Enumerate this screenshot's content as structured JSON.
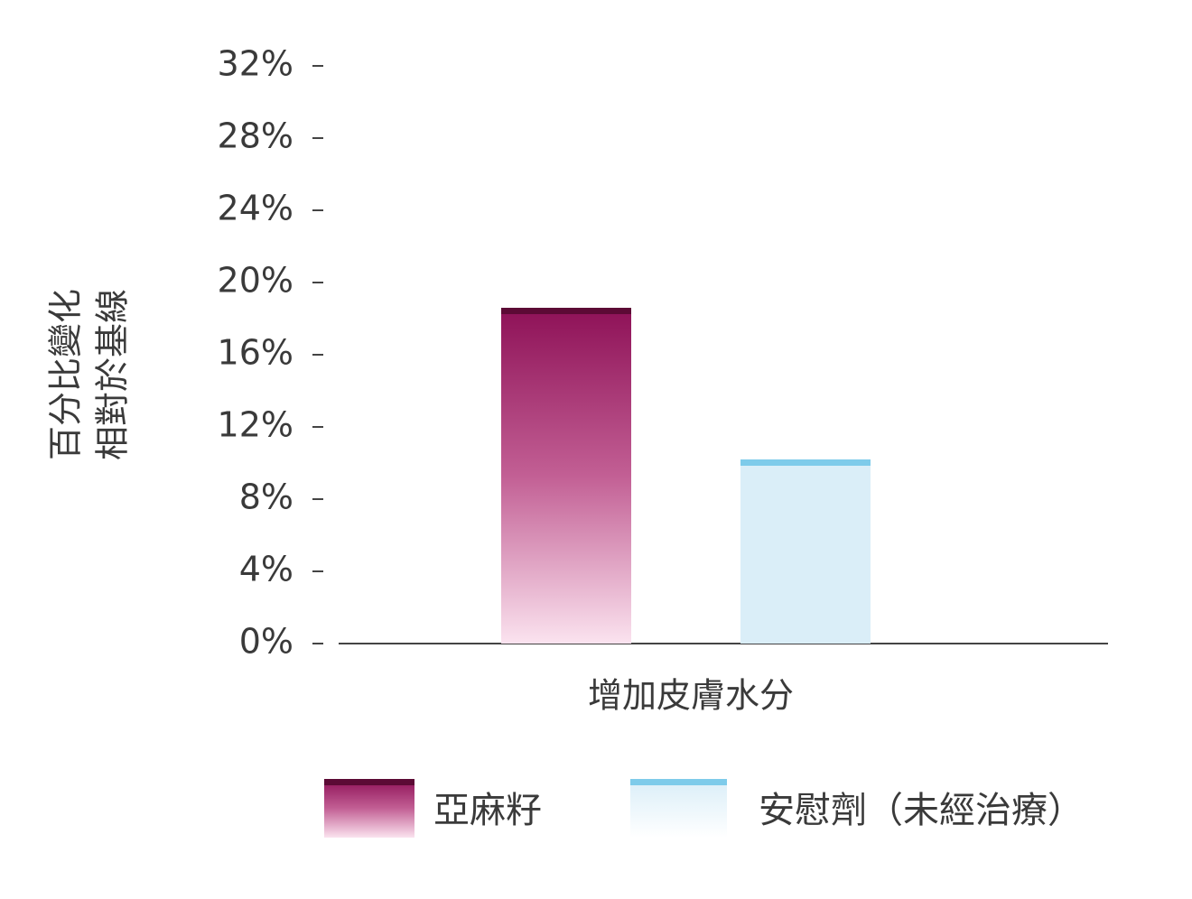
{
  "chart_data": {
    "type": "bar",
    "y_label": [
      "百分比變化",
      "相對於基線"
    ],
    "categories": [
      "增加皮膚水分"
    ],
    "series": [
      {
        "name": "亞麻籽",
        "color": "#8e1157",
        "values": [
          18.6
        ]
      },
      {
        "name": "安慰劑（未經治療）",
        "color": "#7ecbea",
        "values": [
          10.2
        ]
      }
    ],
    "ylim": [
      0,
      32
    ],
    "yticks": [
      {
        "value": 0,
        "label": "0%"
      },
      {
        "value": 4,
        "label": "4%"
      },
      {
        "value": 8,
        "label": "8%"
      },
      {
        "value": 12,
        "label": "12%"
      },
      {
        "value": 16,
        "label": "16%"
      },
      {
        "value": 20,
        "label": "20%"
      },
      {
        "value": 24,
        "label": "24%"
      },
      {
        "value": 28,
        "label": "28%"
      },
      {
        "value": 32,
        "label": "32%"
      }
    ],
    "grid": false
  }
}
